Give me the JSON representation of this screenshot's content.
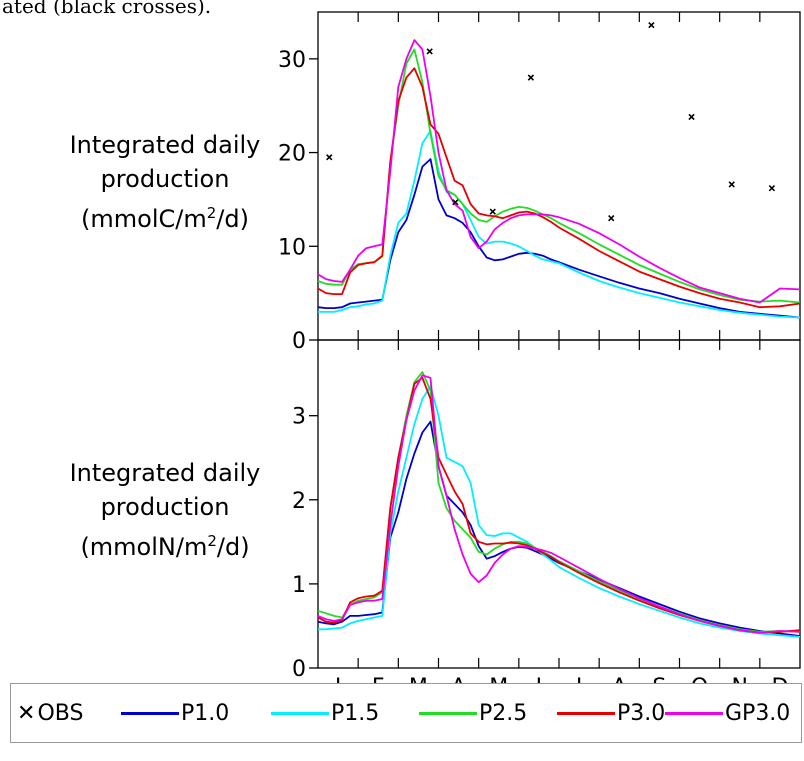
{
  "caption": "ated (black crosses).",
  "chart_data": [
    {
      "type": "line",
      "ylabel_lines": [
        "Integrated daily",
        "production",
        "(mmolC/m",
        "2",
        "/d)"
      ],
      "ylim": [
        0,
        35
      ],
      "yticks": [
        0,
        10,
        20,
        30
      ],
      "ytick_labels": [
        "0",
        "10",
        "20",
        "30"
      ],
      "x": [
        0,
        0.2,
        0.4,
        0.6,
        0.8,
        1.0,
        1.2,
        1.4,
        1.6,
        1.8,
        2.0,
        2.2,
        2.4,
        2.6,
        2.8,
        3.0,
        3.2,
        3.4,
        3.6,
        3.8,
        4.0,
        4.2,
        4.4,
        4.6,
        4.8,
        5.0,
        5.2,
        5.4,
        5.6,
        5.8,
        6.0,
        6.5,
        7.0,
        7.5,
        8.0,
        8.5,
        9.0,
        9.5,
        10.0,
        10.5,
        11.0,
        11.5,
        12.0
      ],
      "series": [
        {
          "name": "P1.0",
          "values": [
            3.5,
            3.4,
            3.4,
            3.5,
            3.9,
            4.0,
            4.1,
            4.2,
            4.3,
            8.5,
            11.5,
            12.8,
            15.5,
            18.5,
            19.3,
            15.0,
            13.3,
            13.0,
            12.5,
            11.5,
            10.0,
            8.8,
            8.5,
            8.6,
            8.9,
            9.2,
            9.3,
            9.2,
            9.0,
            8.6,
            8.3,
            7.5,
            6.8,
            6.1,
            5.5,
            5.0,
            4.4,
            3.9,
            3.4,
            3.0,
            2.8,
            2.6,
            2.4
          ]
        },
        {
          "name": "P1.5",
          "values": [
            3.0,
            3.0,
            3.0,
            3.2,
            3.5,
            3.6,
            3.8,
            3.9,
            4.2,
            9.0,
            12.5,
            13.5,
            17.0,
            21.0,
            22.3,
            18.0,
            15.8,
            15.5,
            14.5,
            12.8,
            11.0,
            10.3,
            10.5,
            10.5,
            10.3,
            10.0,
            9.5,
            9.0,
            8.6,
            8.4,
            8.2,
            7.2,
            6.3,
            5.6,
            5.0,
            4.5,
            4.0,
            3.6,
            3.2,
            2.9,
            2.7,
            2.5,
            2.4
          ]
        },
        {
          "name": "P2.5",
          "values": [
            6.3,
            6.0,
            5.9,
            5.9,
            7.5,
            8.1,
            8.2,
            8.3,
            8.9,
            19.0,
            25.0,
            29.5,
            31.0,
            27.5,
            22.0,
            17.5,
            16.0,
            15.5,
            14.5,
            13.5,
            12.8,
            12.6,
            13.2,
            13.7,
            14.0,
            14.2,
            14.1,
            13.8,
            13.4,
            13.0,
            12.5,
            11.4,
            10.2,
            9.1,
            8.0,
            7.1,
            6.2,
            5.4,
            4.8,
            4.3,
            4.1,
            4.2,
            4.0
          ]
        },
        {
          "name": "P3.0",
          "values": [
            5.5,
            5.0,
            4.9,
            4.9,
            7.2,
            8.0,
            8.2,
            8.3,
            9.0,
            19.0,
            25.5,
            28.0,
            29.0,
            27.0,
            23.0,
            22.0,
            19.5,
            17.0,
            16.5,
            14.5,
            13.5,
            13.3,
            13.2,
            13.0,
            13.3,
            13.6,
            13.7,
            13.5,
            13.1,
            12.6,
            12.0,
            10.8,
            9.5,
            8.4,
            7.3,
            6.5,
            5.7,
            5.0,
            4.4,
            4.0,
            3.5,
            3.6,
            3.9
          ]
        },
        {
          "name": "GP3.0",
          "values": [
            7.0,
            6.5,
            6.3,
            6.2,
            7.5,
            9.0,
            9.8,
            10.0,
            10.2,
            18.0,
            27.0,
            30.0,
            32.0,
            31.0,
            26.0,
            20.0,
            16.0,
            14.5,
            13.8,
            11.0,
            9.8,
            10.5,
            11.8,
            12.5,
            13.0,
            13.3,
            13.4,
            13.4,
            13.4,
            13.3,
            13.1,
            12.4,
            11.4,
            10.2,
            8.9,
            7.7,
            6.6,
            5.6,
            5.0,
            4.4,
            4.0,
            5.5,
            5.4
          ]
        }
      ],
      "obs": {
        "name": "OBS",
        "x": [
          0.28,
          2.78,
          3.42,
          4.35,
          5.3,
          7.3,
          8.3,
          9.3,
          10.3,
          11.3
        ],
        "y": [
          19.5,
          30.8,
          14.7,
          13.7,
          28.0,
          13.0,
          33.6,
          23.8,
          16.6,
          16.2
        ]
      }
    },
    {
      "type": "line",
      "ylabel_lines": [
        "Integrated daily",
        "production",
        "(mmolN/m",
        "2",
        "/d)"
      ],
      "ylim": [
        0,
        3.9
      ],
      "yticks": [
        0,
        1,
        2,
        3
      ],
      "ytick_labels": [
        "0",
        "1",
        "2",
        "3"
      ],
      "x": [
        0,
        0.2,
        0.4,
        0.6,
        0.8,
        1.0,
        1.2,
        1.4,
        1.6,
        1.8,
        2.0,
        2.2,
        2.4,
        2.6,
        2.8,
        3.0,
        3.2,
        3.4,
        3.6,
        3.8,
        4.0,
        4.2,
        4.4,
        4.6,
        4.8,
        5.0,
        5.2,
        5.4,
        5.6,
        5.8,
        6.0,
        6.5,
        7.0,
        7.5,
        8.0,
        8.5,
        9.0,
        9.5,
        10.0,
        10.5,
        11.0,
        11.5,
        12.0
      ],
      "xtick_labels": [
        "J",
        "F",
        "M",
        "A",
        "M",
        "J",
        "J",
        "A",
        "S",
        "O",
        "N",
        "D"
      ],
      "series": [
        {
          "name": "P1.0",
          "values": [
            0.55,
            0.53,
            0.52,
            0.55,
            0.62,
            0.62,
            0.63,
            0.64,
            0.66,
            1.55,
            1.85,
            2.25,
            2.55,
            2.8,
            2.93,
            2.4,
            2.05,
            1.95,
            1.85,
            1.7,
            1.45,
            1.3,
            1.33,
            1.38,
            1.42,
            1.44,
            1.43,
            1.39,
            1.35,
            1.3,
            1.25,
            1.15,
            1.05,
            0.95,
            0.85,
            0.76,
            0.67,
            0.59,
            0.53,
            0.48,
            0.44,
            0.41,
            0.38
          ]
        },
        {
          "name": "P1.5",
          "values": [
            0.46,
            0.46,
            0.47,
            0.48,
            0.53,
            0.56,
            0.58,
            0.6,
            0.62,
            1.6,
            2.1,
            2.5,
            2.9,
            3.2,
            3.35,
            3.0,
            2.5,
            2.45,
            2.4,
            2.2,
            1.7,
            1.58,
            1.57,
            1.6,
            1.6,
            1.55,
            1.5,
            1.43,
            1.35,
            1.28,
            1.2,
            1.07,
            0.95,
            0.85,
            0.76,
            0.68,
            0.6,
            0.53,
            0.48,
            0.44,
            0.41,
            0.39,
            0.37
          ]
        },
        {
          "name": "P2.5",
          "values": [
            0.68,
            0.65,
            0.62,
            0.6,
            0.75,
            0.8,
            0.82,
            0.84,
            0.9,
            1.9,
            2.5,
            3.0,
            3.4,
            3.52,
            3.3,
            2.2,
            1.9,
            1.75,
            1.65,
            1.55,
            1.38,
            1.35,
            1.42,
            1.47,
            1.5,
            1.5,
            1.48,
            1.43,
            1.38,
            1.33,
            1.27,
            1.15,
            1.03,
            0.92,
            0.82,
            0.73,
            0.65,
            0.57,
            0.51,
            0.46,
            0.43,
            0.44,
            0.43
          ]
        },
        {
          "name": "P3.0",
          "values": [
            0.6,
            0.55,
            0.54,
            0.57,
            0.78,
            0.83,
            0.85,
            0.86,
            0.92,
            1.9,
            2.5,
            2.95,
            3.38,
            3.45,
            3.2,
            2.5,
            2.3,
            2.1,
            1.95,
            1.6,
            1.5,
            1.47,
            1.48,
            1.48,
            1.49,
            1.48,
            1.46,
            1.42,
            1.37,
            1.32,
            1.26,
            1.13,
            1.01,
            0.9,
            0.8,
            0.71,
            0.63,
            0.56,
            0.5,
            0.45,
            0.42,
            0.43,
            0.45
          ]
        },
        {
          "name": "GP3.0",
          "values": [
            0.62,
            0.58,
            0.56,
            0.58,
            0.75,
            0.78,
            0.8,
            0.8,
            0.82,
            1.7,
            2.4,
            2.95,
            3.3,
            3.48,
            3.45,
            2.4,
            2.05,
            1.65,
            1.35,
            1.12,
            1.02,
            1.1,
            1.25,
            1.35,
            1.42,
            1.45,
            1.44,
            1.42,
            1.4,
            1.37,
            1.32,
            1.19,
            1.06,
            0.94,
            0.83,
            0.73,
            0.64,
            0.56,
            0.5,
            0.45,
            0.42,
            0.44,
            0.43
          ]
        }
      ]
    }
  ],
  "colors": {
    "P1.0": "#0000cc",
    "P1.5": "#00eeff",
    "P2.5": "#22dd22",
    "P3.0": "#e80000",
    "GP3.0": "#ee00ee",
    "OBS": "#000000"
  },
  "legend": {
    "obs_label": "OBS",
    "items": [
      "P1.0",
      "P1.5",
      "P2.5",
      "P3.0",
      "GP3.0"
    ]
  }
}
